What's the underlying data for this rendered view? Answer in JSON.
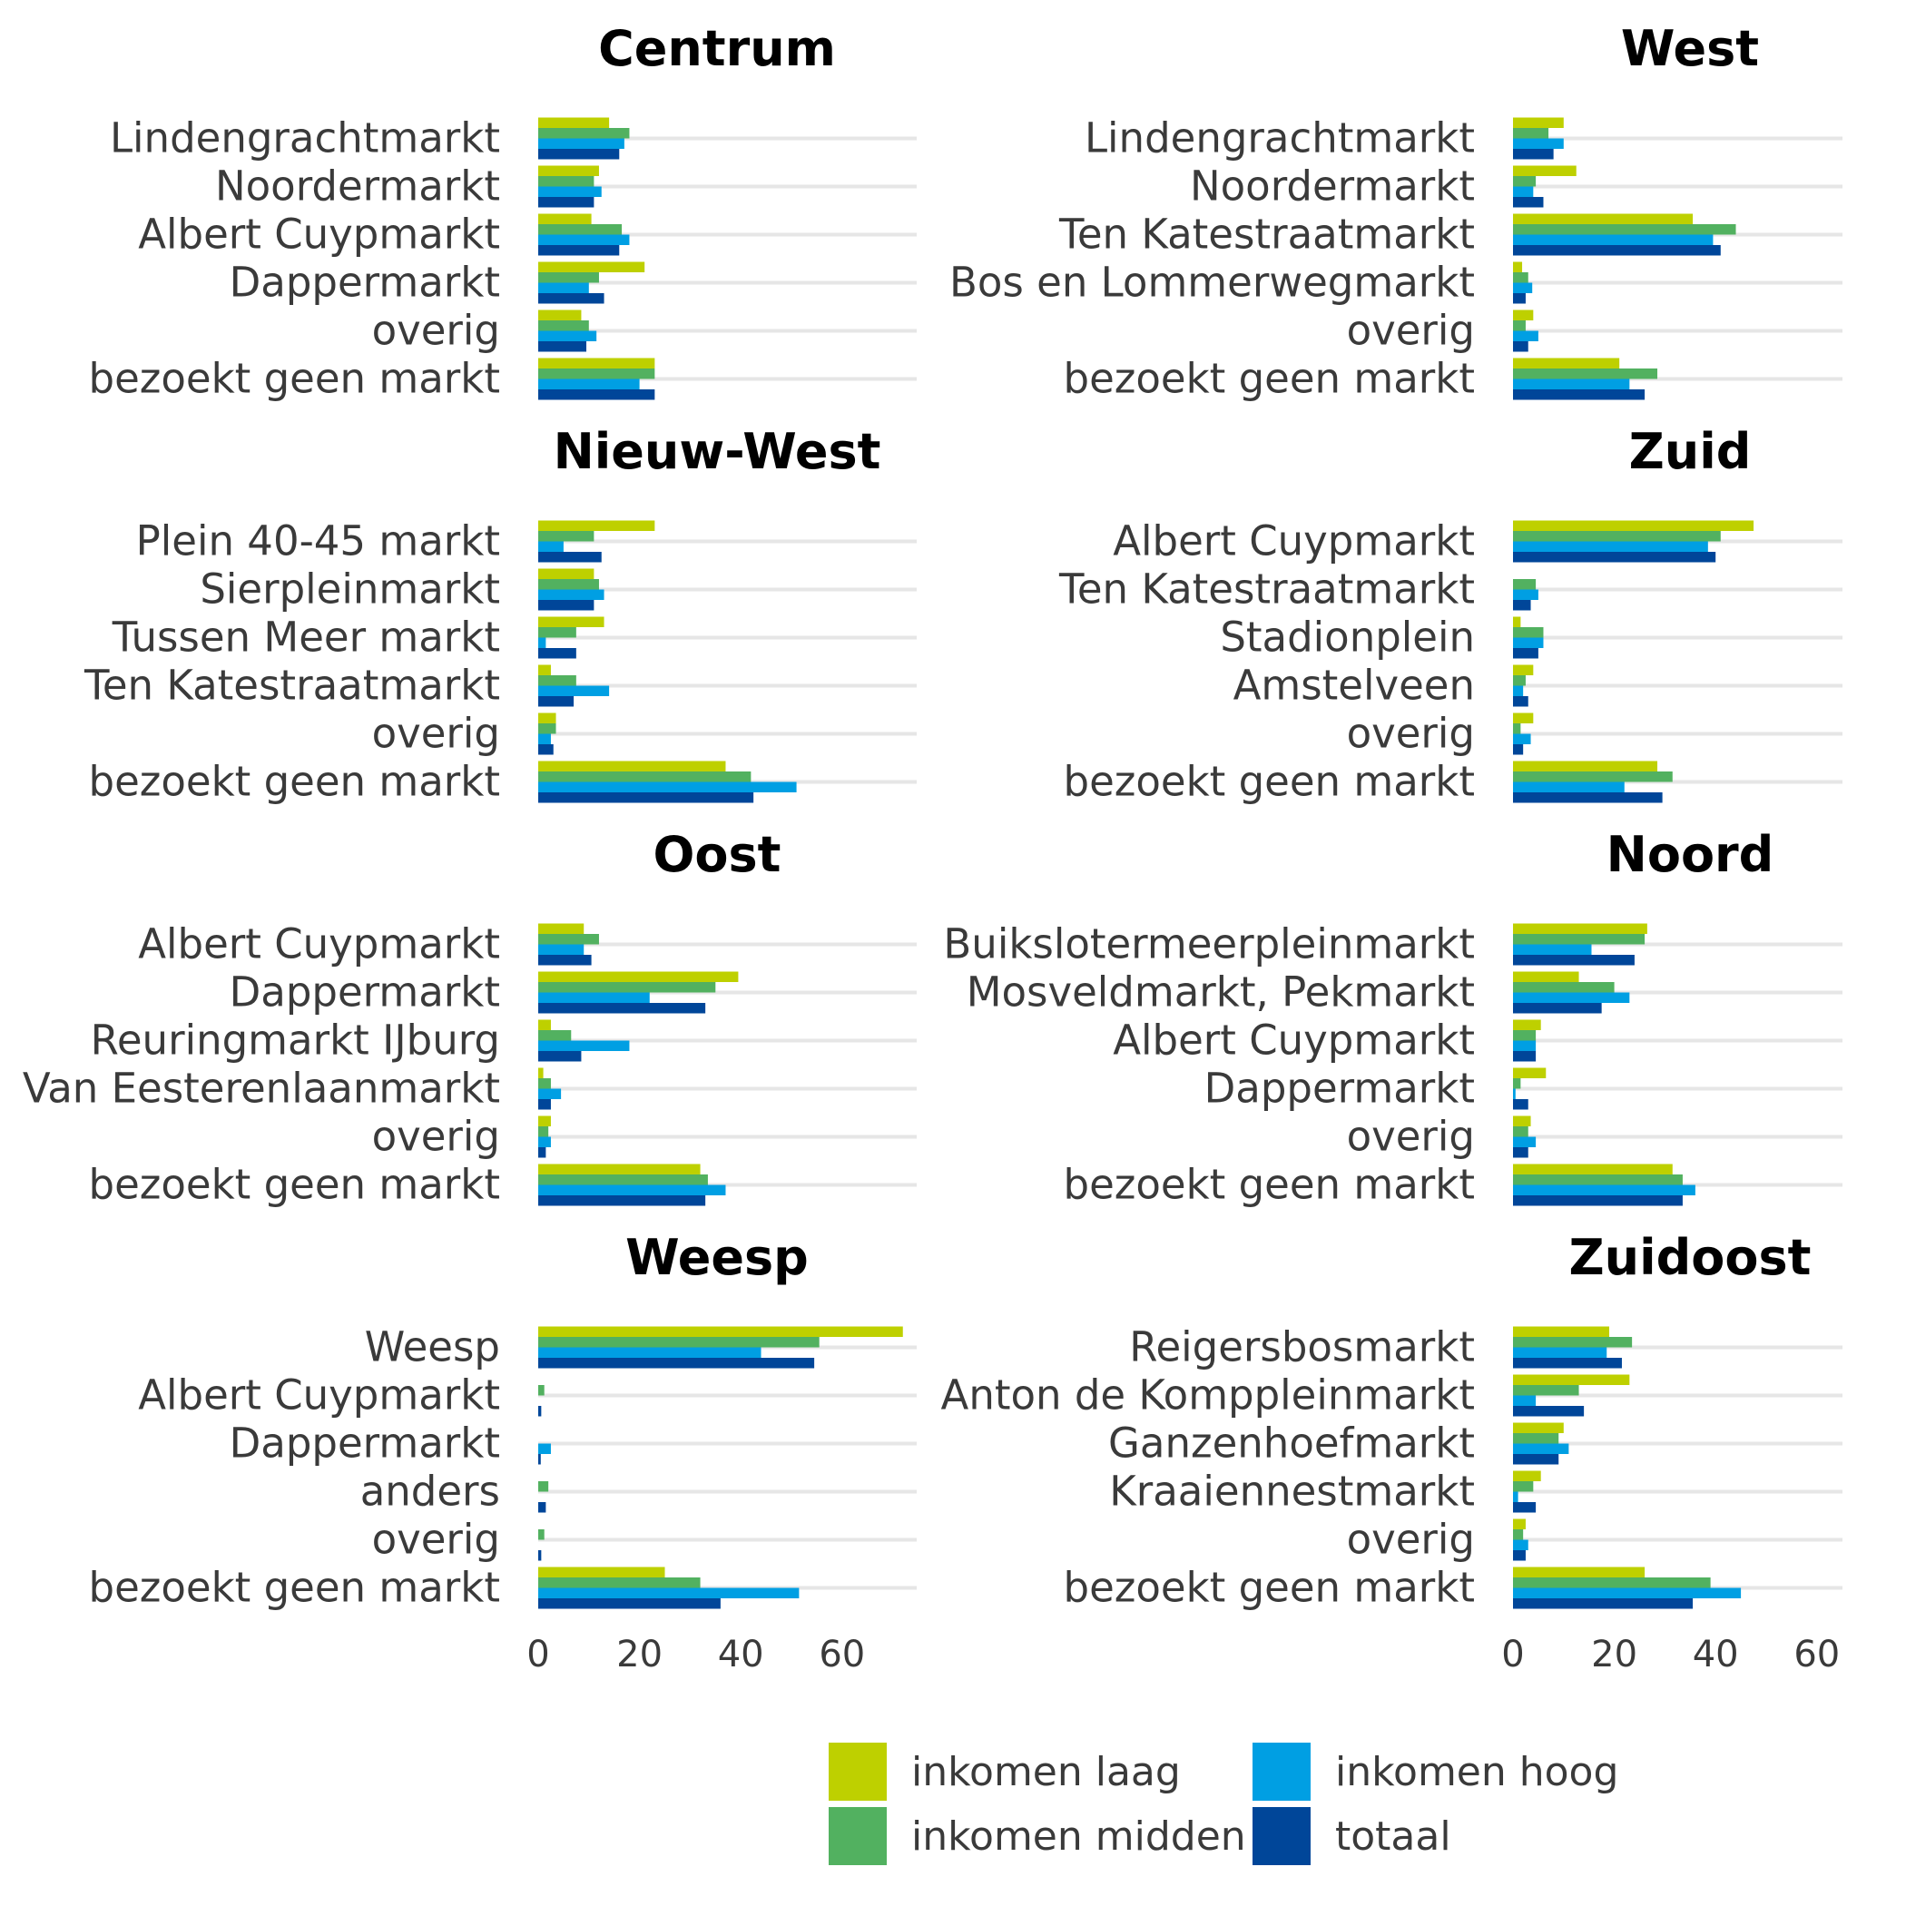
{
  "colors": {
    "inkomen_laag": "#bed000",
    "inkomen_midden": "#52b160",
    "inkomen_hoog": "#009fe3",
    "totaal": "#004699",
    "grid": "#e6e6e6"
  },
  "chart_data": {
    "type": "bar",
    "orientation": "horizontal",
    "xlim": [
      0,
      75
    ],
    "xticks": [
      "0",
      "20",
      "40",
      "60"
    ],
    "grid": true,
    "legend": {
      "placement": "bottom-right",
      "entries": [
        "inkomen laag",
        "inkomen hoog",
        "inkomen midden",
        "totaal"
      ]
    },
    "series_names": [
      "inkomen laag",
      "inkomen midden",
      "inkomen hoog",
      "totaal"
    ],
    "panels": [
      {
        "title": "Centrum",
        "categories": [
          "Lindengrachtmarkt",
          "Noordermarkt",
          "Albert Cuypmarkt",
          "Dappermarkt",
          "overig",
          "bezoekt geen markt"
        ],
        "values": [
          [
            14,
            18,
            17,
            16
          ],
          [
            12,
            11,
            12.5,
            11
          ],
          [
            10.5,
            16.5,
            18,
            16
          ],
          [
            21,
            12,
            10,
            13
          ],
          [
            8.5,
            10,
            11.5,
            9.5
          ],
          [
            23,
            23,
            20,
            23
          ]
        ]
      },
      {
        "title": "West",
        "categories": [
          "Lindengrachtmarkt",
          "Noordermarkt",
          "Ten Katestraatmarkt",
          "Bos en Lommerwegmarkt",
          "overig",
          "bezoekt geen markt"
        ],
        "values": [
          [
            10,
            7,
            10,
            8
          ],
          [
            12.5,
            4.5,
            4,
            6
          ],
          [
            35.5,
            44,
            39.5,
            41
          ],
          [
            1.8,
            3,
            3.8,
            2.5
          ],
          [
            4,
            2.5,
            5,
            3
          ],
          [
            21,
            28.5,
            23,
            26
          ]
        ]
      },
      {
        "title": "Nieuw-West",
        "categories": [
          "Plein 40-45 markt",
          "Sierpleinmarkt",
          "Tussen Meer markt",
          "Ten Katestraatmarkt",
          "overig",
          "bezoekt geen markt"
        ],
        "values": [
          [
            23,
            11,
            5,
            12.5
          ],
          [
            11,
            12,
            13,
            11
          ],
          [
            13,
            7.5,
            1.5,
            7.5
          ],
          [
            2.5,
            7.5,
            14,
            7
          ],
          [
            3.5,
            3.5,
            2.5,
            3
          ],
          [
            37,
            42,
            51,
            42.5
          ]
        ]
      },
      {
        "title": "Zuid",
        "categories": [
          "Albert Cuypmarkt",
          "Ten Katestraatmarkt",
          "Stadionplein",
          "Amstelveen",
          "overig",
          "bezoekt geen markt"
        ],
        "values": [
          [
            47.5,
            41,
            38.5,
            40
          ],
          [
            0,
            4.5,
            5,
            3.5
          ],
          [
            1.5,
            6,
            6,
            5
          ],
          [
            4,
            2.5,
            2,
            3
          ],
          [
            4,
            1.5,
            3.5,
            2
          ],
          [
            28.5,
            31.5,
            22,
            29.5
          ]
        ]
      },
      {
        "title": "Oost",
        "categories": [
          "Albert Cuypmarkt",
          "Dappermarkt",
          "Reuringmarkt IJburg",
          "Van Eesterenlaanmarkt",
          "overig",
          "bezoekt geen markt"
        ],
        "values": [
          [
            9,
            12,
            9,
            10.5
          ],
          [
            39.5,
            35,
            22,
            33
          ],
          [
            2.5,
            6.5,
            18,
            8.5
          ],
          [
            1,
            2.5,
            4.5,
            2.5
          ],
          [
            2.5,
            2,
            2.5,
            1.5
          ],
          [
            32,
            33.5,
            37,
            33
          ]
        ]
      },
      {
        "title": "Noord",
        "categories": [
          "Buikslotermeerpleinmarkt",
          "Mosveldmarkt, Pekmarkt",
          "Albert Cuypmarkt",
          "Dappermarkt",
          "overig",
          "bezoekt geen markt"
        ],
        "values": [
          [
            26.5,
            26,
            15.5,
            24
          ],
          [
            13,
            20,
            23,
            17.5
          ],
          [
            5.5,
            4.5,
            4.5,
            4.5
          ],
          [
            6.5,
            1.5,
            0.5,
            3
          ],
          [
            3.5,
            3,
            4.5,
            3
          ],
          [
            31.5,
            33.5,
            36,
            33.5
          ]
        ]
      },
      {
        "title": "Weesp",
        "categories": [
          "Weesp",
          "Albert Cuypmarkt",
          "Dappermarkt",
          "anders",
          "overig",
          "bezoekt geen markt"
        ],
        "values": [
          [
            72,
            55.5,
            44,
            54.5
          ],
          [
            0,
            1.2,
            0,
            0.6
          ],
          [
            0,
            0,
            2.5,
            0.5
          ],
          [
            0,
            2,
            0,
            1.5
          ],
          [
            0,
            1.2,
            0,
            0.6
          ],
          [
            25,
            32,
            51.5,
            36
          ]
        ]
      },
      {
        "title": "Zuidoost",
        "categories": [
          "Reigersbosmarkt",
          "Anton de Komppleinmarkt",
          "Ganzenhoefmarkt",
          "Kraaiennestmarkt",
          "overig",
          "bezoekt geen markt"
        ],
        "values": [
          [
            19,
            23.5,
            18.5,
            21.5
          ],
          [
            23,
            13,
            4.5,
            14
          ],
          [
            10,
            9,
            11,
            9
          ],
          [
            5.5,
            4,
            1,
            4.5
          ],
          [
            2.5,
            2,
            3,
            2.5
          ],
          [
            26,
            39,
            45,
            35.5
          ]
        ]
      }
    ]
  }
}
